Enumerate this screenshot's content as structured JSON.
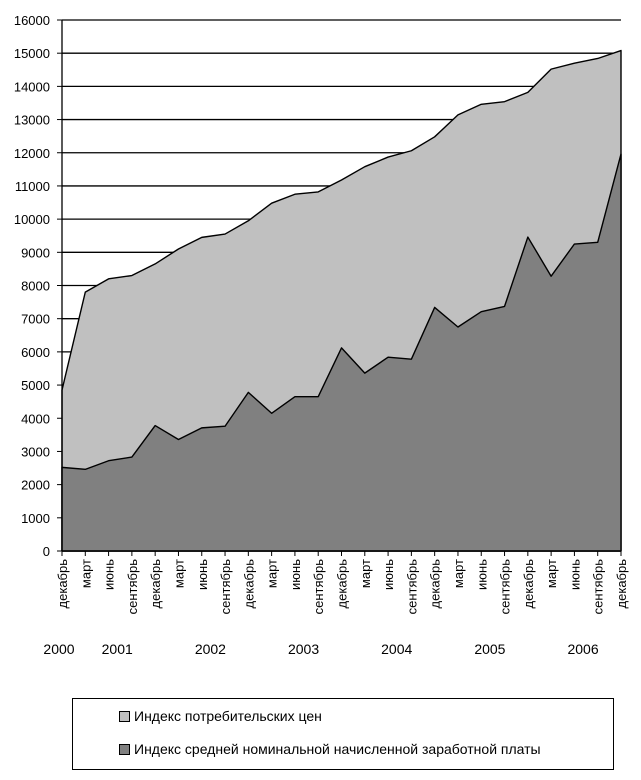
{
  "chart_data": {
    "type": "area",
    "stacked": false,
    "x": [
      "декабрь",
      "март",
      "июнь",
      "сентябрь",
      "декабрь",
      "март",
      "июнь",
      "сентябрь",
      "декабрь",
      "март",
      "июнь",
      "сентябрь",
      "декабрь",
      "март",
      "июнь",
      "сентябрь",
      "декабрь",
      "март",
      "июнь",
      "сентябрь",
      "декабрь",
      "март",
      "июнь",
      "сентябрь",
      "декабрь"
    ],
    "year_labels": [
      {
        "label": "2000",
        "x_index": 0
      },
      {
        "label": "2001",
        "x_index": 2.5
      },
      {
        "label": "2002",
        "x_index": 6.5
      },
      {
        "label": "2003",
        "x_index": 10.5
      },
      {
        "label": "2004",
        "x_index": 14.5
      },
      {
        "label": "2005",
        "x_index": 18.5
      },
      {
        "label": "2006",
        "x_index": 22.5
      }
    ],
    "series": [
      {
        "name": "Индекс потребительских цен",
        "color": "#c0c0c0",
        "values": [
          4850,
          7800,
          8200,
          8300,
          8650,
          9100,
          9450,
          9550,
          9950,
          10480,
          10750,
          10820,
          11180,
          11580,
          11870,
          12060,
          12480,
          13140,
          13460,
          13540,
          13820,
          14520,
          14700,
          14840,
          15080
        ]
      },
      {
        "name": "Индекс средней номинальной начисленной заработной платы",
        "color": "#808080",
        "values": [
          2520,
          2460,
          2720,
          2830,
          3780,
          3360,
          3710,
          3760,
          4780,
          4150,
          4650,
          4650,
          6120,
          5360,
          5840,
          5780,
          7340,
          6750,
          7210,
          7370,
          9460,
          8280,
          9250,
          9300,
          11960
        ]
      }
    ],
    "ylim": [
      0,
      16000
    ],
    "yticks": [
      0,
      1000,
      2000,
      3000,
      4000,
      5000,
      6000,
      7000,
      8000,
      9000,
      10000,
      11000,
      12000,
      13000,
      14000,
      15000,
      16000
    ],
    "grid": true,
    "legend_position": "bottom"
  }
}
